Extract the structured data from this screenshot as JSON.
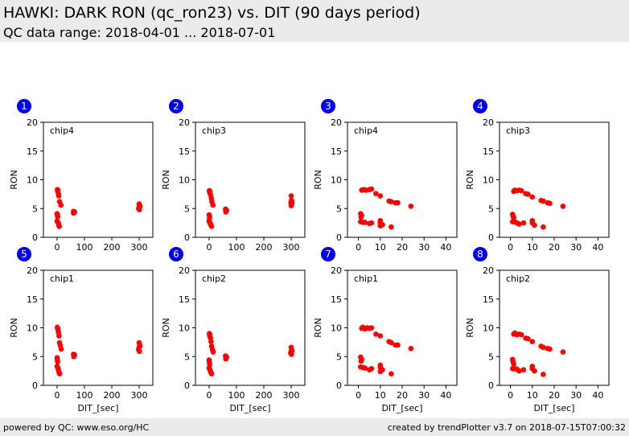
{
  "header": {
    "title": "HAWKI: DARK RON (qc_ron23) vs. DIT (90 days period)",
    "subtitle": "QC data range: 2018-04-01 ... 2018-07-01"
  },
  "footer": {
    "left": "powered by QC: www.eso.org/HC",
    "right": "created by trendPlotter v3.7 on 2018-07-15T07:00:32"
  },
  "colors": {
    "marker": "#ff0000",
    "badge": "#0000ee",
    "header_bg": "#ebebeb"
  },
  "chart_data": [
    {
      "type": "scatter",
      "badge": "1",
      "label": "chip4",
      "xlabel": "",
      "ylabel": "RON",
      "xlim": [
        -50,
        350
      ],
      "ylim": [
        0,
        20
      ],
      "xticks": [],
      "xticklabels": [
        "0",
        "100",
        "200",
        "300"
      ],
      "yticks": [
        0,
        5,
        10,
        15,
        20
      ],
      "points": [
        [
          1,
          8.3
        ],
        [
          3,
          8.2
        ],
        [
          2,
          8.0
        ],
        [
          5,
          7.5
        ],
        [
          6,
          7.2
        ],
        [
          9,
          6.2
        ],
        [
          14,
          5.6
        ],
        [
          0,
          4.1
        ],
        [
          1,
          3.9
        ],
        [
          2,
          3.6
        ],
        [
          0,
          2.8
        ],
        [
          3,
          2.6
        ],
        [
          5,
          2.4
        ],
        [
          6,
          2.1
        ],
        [
          8,
          1.9
        ],
        [
          60,
          4.5
        ],
        [
          62,
          4.3
        ],
        [
          60,
          4.2
        ],
        [
          64,
          4.4
        ],
        [
          300,
          5.8
        ],
        [
          302,
          5.5
        ],
        [
          300,
          5.2
        ],
        [
          298,
          5.0
        ],
        [
          301,
          4.8
        ],
        [
          303,
          5.4
        ]
      ]
    },
    {
      "type": "scatter",
      "badge": "2",
      "label": "chip3",
      "xlabel": "",
      "ylabel": "RON",
      "xlim": [
        -50,
        350
      ],
      "ylim": [
        0,
        20
      ],
      "xticks": [],
      "xticklabels": [
        "0",
        "100",
        "200",
        "300"
      ],
      "yticks": [
        0,
        5,
        10,
        15,
        20
      ],
      "points": [
        [
          1,
          8.1
        ],
        [
          3,
          8.0
        ],
        [
          2,
          7.8
        ],
        [
          5,
          7.4
        ],
        [
          8,
          6.8
        ],
        [
          10,
          6.2
        ],
        [
          14,
          5.6
        ],
        [
          0,
          3.9
        ],
        [
          2,
          3.6
        ],
        [
          1,
          3.3
        ],
        [
          0,
          2.8
        ],
        [
          3,
          2.5
        ],
        [
          5,
          2.3
        ],
        [
          7,
          2.1
        ],
        [
          9,
          1.9
        ],
        [
          60,
          4.9
        ],
        [
          62,
          4.6
        ],
        [
          61,
          4.4
        ],
        [
          64,
          4.7
        ],
        [
          300,
          7.2
        ],
        [
          301,
          6.4
        ],
        [
          299,
          6.0
        ],
        [
          302,
          5.8
        ],
        [
          300,
          5.5
        ],
        [
          303,
          6.2
        ]
      ]
    },
    {
      "type": "scatter",
      "badge": "3",
      "label": "chip4",
      "xlabel": "",
      "ylabel": "RON",
      "xlim": [
        -5,
        45
      ],
      "ylim": [
        0,
        20
      ],
      "xticks": [],
      "xticklabels": [
        "0",
        "10",
        "20",
        "30",
        "40"
      ],
      "yticks": [
        0,
        5,
        10,
        15,
        20
      ],
      "points": [
        [
          1.5,
          8.2
        ],
        [
          2.5,
          8.3
        ],
        [
          3.5,
          8.2
        ],
        [
          5,
          8.3
        ],
        [
          6,
          8.4
        ],
        [
          8,
          7.6
        ],
        [
          10,
          7.2
        ],
        [
          14,
          6.3
        ],
        [
          15,
          6.2
        ],
        [
          17,
          6.0
        ],
        [
          18,
          6.0
        ],
        [
          24,
          5.4
        ],
        [
          1,
          4.1
        ],
        [
          1.5,
          3.8
        ],
        [
          1.2,
          3.5
        ],
        [
          1,
          2.7
        ],
        [
          2,
          2.6
        ],
        [
          3,
          2.6
        ],
        [
          5,
          2.4
        ],
        [
          6,
          2.5
        ],
        [
          10,
          2.9
        ],
        [
          10,
          2.5
        ],
        [
          11,
          2.2
        ],
        [
          10,
          2.0
        ],
        [
          15,
          1.8
        ]
      ]
    },
    {
      "type": "scatter",
      "badge": "4",
      "label": "chip3",
      "xlabel": "",
      "ylabel": "RON",
      "xlim": [
        -5,
        45
      ],
      "ylim": [
        0,
        20
      ],
      "xticks": [],
      "xticklabels": [
        "0",
        "10",
        "20",
        "30",
        "40"
      ],
      "yticks": [
        0,
        5,
        10,
        15,
        20
      ],
      "points": [
        [
          1.5,
          8.0
        ],
        [
          2,
          8.2
        ],
        [
          3,
          8.1
        ],
        [
          4,
          8.2
        ],
        [
          5,
          8.1
        ],
        [
          7,
          7.6
        ],
        [
          8,
          7.5
        ],
        [
          10,
          7.0
        ],
        [
          14,
          6.4
        ],
        [
          15,
          6.3
        ],
        [
          17,
          6.0
        ],
        [
          18,
          5.9
        ],
        [
          24,
          5.4
        ],
        [
          1,
          4.0
        ],
        [
          1.2,
          3.7
        ],
        [
          1.5,
          3.4
        ],
        [
          1,
          2.7
        ],
        [
          2,
          2.7
        ],
        [
          3,
          2.5
        ],
        [
          4,
          2.3
        ],
        [
          6,
          2.5
        ],
        [
          10,
          2.9
        ],
        [
          10,
          2.5
        ],
        [
          11,
          2.1
        ],
        [
          15,
          1.8
        ]
      ]
    },
    {
      "type": "scatter",
      "badge": "5",
      "label": "chip1",
      "xlabel": "DIT_[sec]",
      "ylabel": "RON",
      "xlim": [
        -50,
        350
      ],
      "ylim": [
        0,
        20
      ],
      "xticks": [],
      "xticklabels": [
        "0",
        "100",
        "200",
        "300"
      ],
      "yticks": [
        0,
        5,
        10,
        15,
        20
      ],
      "points": [
        [
          1,
          10.1
        ],
        [
          2,
          9.9
        ],
        [
          3,
          9.7
        ],
        [
          5,
          9.2
        ],
        [
          7,
          8.6
        ],
        [
          9,
          7.4
        ],
        [
          12,
          6.9
        ],
        [
          15,
          6.3
        ],
        [
          0,
          4.8
        ],
        [
          1,
          4.4
        ],
        [
          2,
          4.1
        ],
        [
          0,
          3.3
        ],
        [
          3,
          3.0
        ],
        [
          5,
          2.6
        ],
        [
          7,
          2.3
        ],
        [
          9,
          2.0
        ],
        [
          60,
          5.4
        ],
        [
          62,
          5.1
        ],
        [
          61,
          5.0
        ],
        [
          64,
          5.3
        ],
        [
          300,
          7.4
        ],
        [
          302,
          7.0
        ],
        [
          300,
          6.6
        ],
        [
          298,
          6.2
        ],
        [
          301,
          5.9
        ],
        [
          303,
          6.8
        ]
      ]
    },
    {
      "type": "scatter",
      "badge": "6",
      "label": "chip2",
      "xlabel": "DIT_[sec]",
      "ylabel": "RON",
      "xlim": [
        -50,
        350
      ],
      "ylim": [
        0,
        20
      ],
      "xticks": [],
      "xticklabels": [
        "0",
        "100",
        "200",
        "300"
      ],
      "yticks": [
        0,
        5,
        10,
        15,
        20
      ],
      "points": [
        [
          1,
          9.0
        ],
        [
          3,
          8.8
        ],
        [
          2,
          8.6
        ],
        [
          5,
          8.2
        ],
        [
          7,
          7.6
        ],
        [
          9,
          6.8
        ],
        [
          12,
          6.2
        ],
        [
          15,
          5.8
        ],
        [
          0,
          4.4
        ],
        [
          1,
          4.0
        ],
        [
          2,
          3.6
        ],
        [
          0,
          3.0
        ],
        [
          3,
          2.7
        ],
        [
          5,
          2.4
        ],
        [
          7,
          2.2
        ],
        [
          9,
          2.0
        ],
        [
          60,
          5.1
        ],
        [
          62,
          4.8
        ],
        [
          61,
          4.6
        ],
        [
          64,
          4.9
        ],
        [
          300,
          6.6
        ],
        [
          302,
          6.2
        ],
        [
          300,
          5.9
        ],
        [
          298,
          5.6
        ],
        [
          301,
          5.4
        ],
        [
          303,
          6.0
        ]
      ]
    },
    {
      "type": "scatter",
      "badge": "7",
      "label": "chip1",
      "xlabel": "DIT_[sec]",
      "ylabel": "RON",
      "xlim": [
        -5,
        45
      ],
      "ylim": [
        0,
        20
      ],
      "xticks": [],
      "xticklabels": [
        "0",
        "10",
        "20",
        "30",
        "40"
      ],
      "yticks": [
        0,
        5,
        10,
        15,
        20
      ],
      "points": [
        [
          1.5,
          9.9
        ],
        [
          2,
          10.1
        ],
        [
          3,
          9.8
        ],
        [
          4,
          10.0
        ],
        [
          5,
          9.9
        ],
        [
          6,
          10.0
        ],
        [
          8,
          8.9
        ],
        [
          10,
          8.6
        ],
        [
          14,
          7.6
        ],
        [
          15,
          7.4
        ],
        [
          17,
          7.0
        ],
        [
          18,
          7.0
        ],
        [
          24,
          6.4
        ],
        [
          1,
          4.9
        ],
        [
          1.5,
          4.5
        ],
        [
          1.2,
          4.2
        ],
        [
          1,
          3.2
        ],
        [
          2,
          3.1
        ],
        [
          3,
          3.0
        ],
        [
          5,
          2.7
        ],
        [
          6,
          2.9
        ],
        [
          10,
          3.5
        ],
        [
          10,
          3.1
        ],
        [
          11,
          2.7
        ],
        [
          10,
          2.4
        ],
        [
          15,
          2.0
        ]
      ]
    },
    {
      "type": "scatter",
      "badge": "8",
      "label": "chip2",
      "xlabel": "DIT_[sec]",
      "ylabel": "RON",
      "xlim": [
        -5,
        45
      ],
      "ylim": [
        0,
        20
      ],
      "xticks": [],
      "xticklabels": [
        "0",
        "10",
        "20",
        "30",
        "40"
      ],
      "yticks": [
        0,
        5,
        10,
        15,
        20
      ],
      "points": [
        [
          1.5,
          8.9
        ],
        [
          2,
          9.1
        ],
        [
          3,
          8.8
        ],
        [
          4,
          8.9
        ],
        [
          5,
          8.8
        ],
        [
          7,
          8.2
        ],
        [
          8,
          8.1
        ],
        [
          10,
          7.6
        ],
        [
          14,
          6.8
        ],
        [
          15,
          6.6
        ],
        [
          17,
          6.4
        ],
        [
          18,
          6.3
        ],
        [
          24,
          5.8
        ],
        [
          1,
          4.5
        ],
        [
          1.2,
          4.1
        ],
        [
          1.5,
          3.7
        ],
        [
          1,
          2.9
        ],
        [
          2,
          2.9
        ],
        [
          3,
          2.8
        ],
        [
          4,
          2.5
        ],
        [
          6,
          2.7
        ],
        [
          10,
          3.3
        ],
        [
          10,
          2.9
        ],
        [
          11,
          2.5
        ],
        [
          15,
          1.9
        ]
      ]
    }
  ]
}
